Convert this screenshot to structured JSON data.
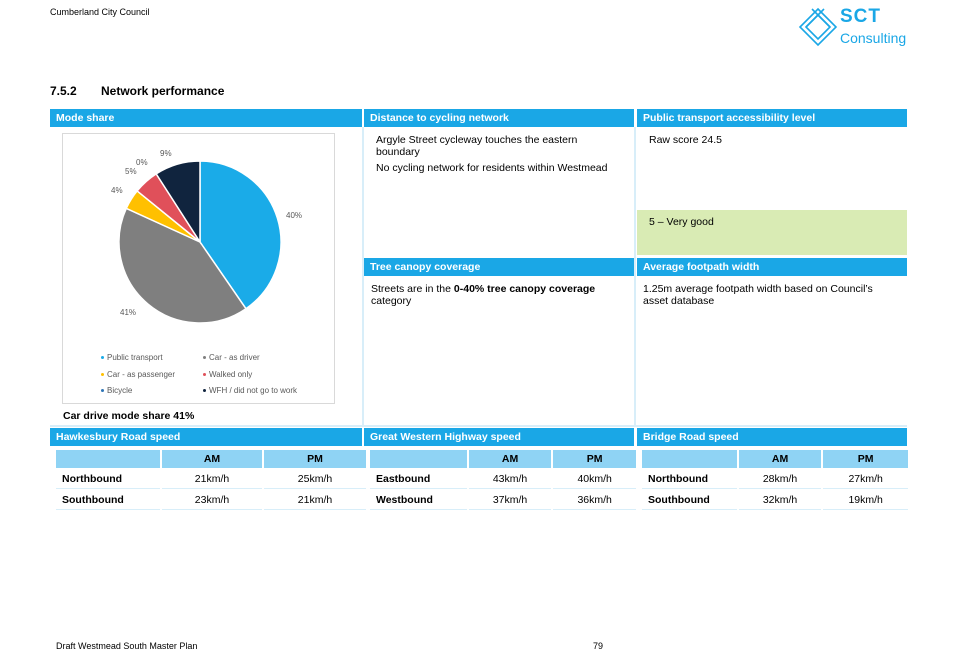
{
  "header": {
    "council": "Cumberland City Council",
    "logo": {
      "top": "SCT",
      "bottom": "Consulting",
      "icon": "diamond-logo-icon",
      "color": "#1aa7e6"
    }
  },
  "section": {
    "number": "7.5.2",
    "title": "Network performance"
  },
  "panels": {
    "mode_share": {
      "title": "Mode share",
      "caption": "Car drive mode share 41%"
    },
    "cycling": {
      "title": "Distance to cycling network",
      "line1": "Argyle Street cycleway touches the eastern boundary",
      "line2": "No cycling network for residents within Westmead"
    },
    "pt": {
      "title": "Public transport accessibility level",
      "raw": "Raw score 24.5",
      "rating": "5 – Very good"
    },
    "tree": {
      "title": "Tree canopy coverage",
      "text_pre": "Streets are in the ",
      "text_bold": "0-40% tree canopy coverage",
      "text_post": " category"
    },
    "footpath": {
      "title": "Average footpath width",
      "text": "1.25m average footpath width based on Council’s asset database"
    }
  },
  "chart_data": {
    "type": "pie",
    "title": "",
    "slices": [
      {
        "name": "Public transport",
        "value": 40,
        "label": "40%",
        "color": "#1aabe8"
      },
      {
        "name": "Car - as driver",
        "value": 41,
        "label": "41%",
        "color": "#7f7f7f"
      },
      {
        "name": "Car - as passenger",
        "value": 4,
        "label": "4%",
        "color": "#ffc000"
      },
      {
        "name": "Walked only",
        "value": 5,
        "label": "5%",
        "color": "#e0505a"
      },
      {
        "name": "Bicycle",
        "value": 0,
        "label": "0%",
        "color": "#2e75b6"
      },
      {
        "name": "WFH / did not go to work",
        "value": 9,
        "label": "9%",
        "color": "#10243e"
      }
    ],
    "legend_position": "bottom"
  },
  "speeds": {
    "am": "AM",
    "pm": "PM",
    "hawkesbury": {
      "title": "Hawkesbury Road speed",
      "rows": [
        {
          "dir": "Northbound",
          "am": "21km/h",
          "pm": "25km/h"
        },
        {
          "dir": "Southbound",
          "am": "23km/h",
          "pm": "21km/h"
        }
      ]
    },
    "gwh": {
      "title": "Great Western Highway speed",
      "rows": [
        {
          "dir": "Eastbound",
          "am": "43km/h",
          "pm": "40km/h"
        },
        {
          "dir": "Westbound",
          "am": "37km/h",
          "pm": "36km/h"
        }
      ]
    },
    "bridge": {
      "title": "Bridge Road speed",
      "rows": [
        {
          "dir": "Northbound",
          "am": "28km/h",
          "pm": "27km/h"
        },
        {
          "dir": "Southbound",
          "am": "32km/h",
          "pm": "19km/h"
        }
      ]
    }
  },
  "footer": {
    "doc": "Draft Westmead South Master Plan",
    "page": "79"
  }
}
